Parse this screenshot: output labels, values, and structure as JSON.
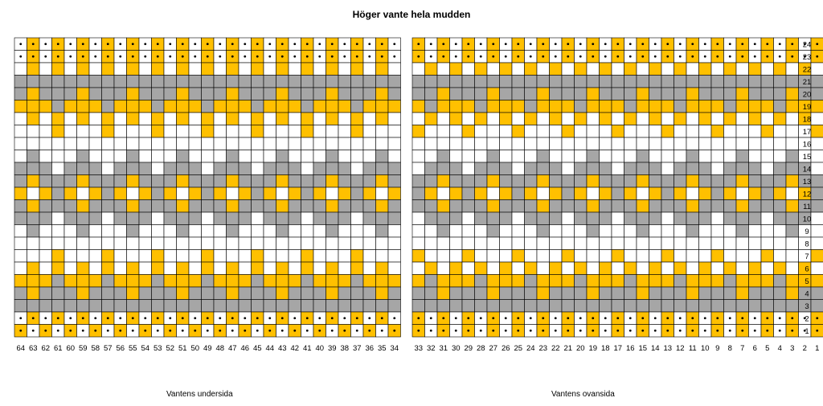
{
  "title": "Höger vante hela mudden",
  "left_caption": "Vantens undersida",
  "right_caption": "Vantens ovansida",
  "colors": {
    "white": "#ffffff",
    "yellow": "#ffc000",
    "gray": "#a6a6a6",
    "grid": "#000000"
  },
  "legend_codes": {
    "W": "white",
    "Y": "yellow",
    "G": "gray",
    "y": "yellow with dot",
    "w": "white with dot"
  },
  "chart_data": {
    "type": "heatmap",
    "row_labels_top_to_bottom": [
      "24",
      "23",
      "22",
      "21",
      "20",
      "19",
      "18",
      "17",
      "16",
      "15",
      "14",
      "13",
      "12",
      "11",
      "10",
      "9",
      "8",
      "7",
      "6",
      "5",
      "4",
      "3",
      "2",
      "1"
    ],
    "left_column_labels": [
      "64",
      "63",
      "62",
      "61",
      "60",
      "59",
      "58",
      "57",
      "56",
      "55",
      "54",
      "53",
      "52",
      "51",
      "50",
      "49",
      "48",
      "47",
      "46",
      "45",
      "44",
      "43",
      "42",
      "41",
      "40",
      "39",
      "38",
      "37",
      "36",
      "35",
      "34"
    ],
    "right_column_labels": [
      "33",
      "32",
      "31",
      "30",
      "29",
      "28",
      "27",
      "26",
      "25",
      "24",
      "23",
      "22",
      "21",
      "20",
      "19",
      "18",
      "17",
      "16",
      "15",
      "14",
      "13",
      "12",
      "11",
      "10",
      "9",
      "8",
      "7",
      "6",
      "5",
      "4",
      "3",
      "2",
      "1"
    ],
    "left_grid": [
      "wywywywywywywywywywywywywywywyw",
      "wywywywywywywywywywywywywywywyw",
      "WYWYWYWYWYWYWYWYWYWYWYWYWYWYWYW",
      "GGGGGGGGGGGGGGGGGGGGGGGGGGGGGGG",
      "GYGGGYGGGYGGGYGGGYGGGYGGGYGGGYG",
      "YYYGYYYGYYYGYYYGYYYGYYYGYYYGYYY",
      "WYWYWYWYWYWYWYWYWYWYWYWYWYWYWYW",
      "WWWYWWWYWWWYWWWYWWWYWWWYWWWYWWW",
      "WWWWWWWWWWWWWWWWWWWWWWWWWWWWWWW",
      "WGWWWGWWWGWWWGWWWGWWWGWWWGWWWGW",
      "GGGWGGGWGGGWGGGWGGGWGGGWGGGWGGG",
      "GYGGGYGGGYGGGYGGGYGGGYGGGYGGGYG",
      "YWYGYWYGYWYGYWYGYWYGYWYGYWYGYWY",
      "GYGGGYGGGYGGGYGGGYGGGYGGGYGGGYG",
      "GGGWGGGWGGGWGGGWGGGWGGGWGGGWGGG",
      "WGWWWGWWWGWWWGWWWGWWWGWWWGWWWGW",
      "WWWWWWWWWWWWWWWWWWWWWWWWWWWWWWW",
      "WWWYWWWYWWWYWWWYWWWYWWWYWWWYWWW",
      "WYWYWYWYWYWYWYWYWYWYWYWYWYWYWYW",
      "YYYGYYYGYYYGYYYGYYYGYYYGYYYGYYY",
      "GYGGGYGGGYGGGYGGGYGGGYGGGYGGGYG",
      "GGGGGGGGGGGGGGGGGGGGGGGGGGGGGGG",
      "wywywywywywywywywywywywywywywyw",
      "ywywywywywywywywywywywywywywywy"
    ],
    "right_grid": [
      "ywywywywywywywywywywywywywywywywy",
      "ywywywywywywywywywywywywywywywywy",
      "WYWYWYWYWYWYWYWYWYWYWYWYWYWYWYWYW",
      "GGGGGGGGGGGGGGGGGGGGGGGGGGGGGGGGG",
      "GGYGGGYGGGYGGGYGGGYGGGYGGGYGGGYGG",
      "YGYYYGYYYGYYYGYYYGYYYGYYYGYYYGYYY",
      "WYWYWYWYWYWYWYWYWYWYWYWYWYWYWYWYW",
      "YWWWYWWWYWWWYWWWYWWWYWWWYWWWYWWWY",
      "WWWWWWWWWWWWWWWWWWWWWWWWWWWWWWWWW",
      "WWGWWWGWWWGWWWGWWWGWWWGWWWGWWWGWW",
      "WGGGWGGGWGGGWGGGWGGGWGGGWGGGWGGGW",
      "GGYGGGYGGGYGGGYGGGYGGGYGGGYGGGYGG",
      "GYWYGYWYGYWYGYWYGYWYGYWYGYWYGYWYG",
      "GGYGGGYGGGYGGGYGGGYGGGYGGGYGGGYGG",
      "WGGGWGGGWGGGWGGGWGGGWGGGWGGGWGGGW",
      "WWGWWWGWWWGWWWGWWWGWWWGWWWGWWWGWW",
      "WWWWWWWWWWWWWWWWWWWWWWWWWWWWWWWWW",
      "YWWWYWWWYWWWYWWWYWWWYWWWYWWWYWWWY",
      "WYWYWYWYWYWYWYWYWYWYWYWYWYWYWYWYW",
      "YGYYYGYYYGYYYGYYYGYYYGYYYGYYYGYYY",
      "GGYGGGYGGGYGGGYGGGYGGGYGGGYGGGYGG",
      "GGGGGGGGGGGGGGGGGGGGGGGGGGGGGGGGG",
      "ywywywywywywywywywywywywywywywywy",
      "ywywywywywywywywywywywywywywywywy"
    ]
  }
}
